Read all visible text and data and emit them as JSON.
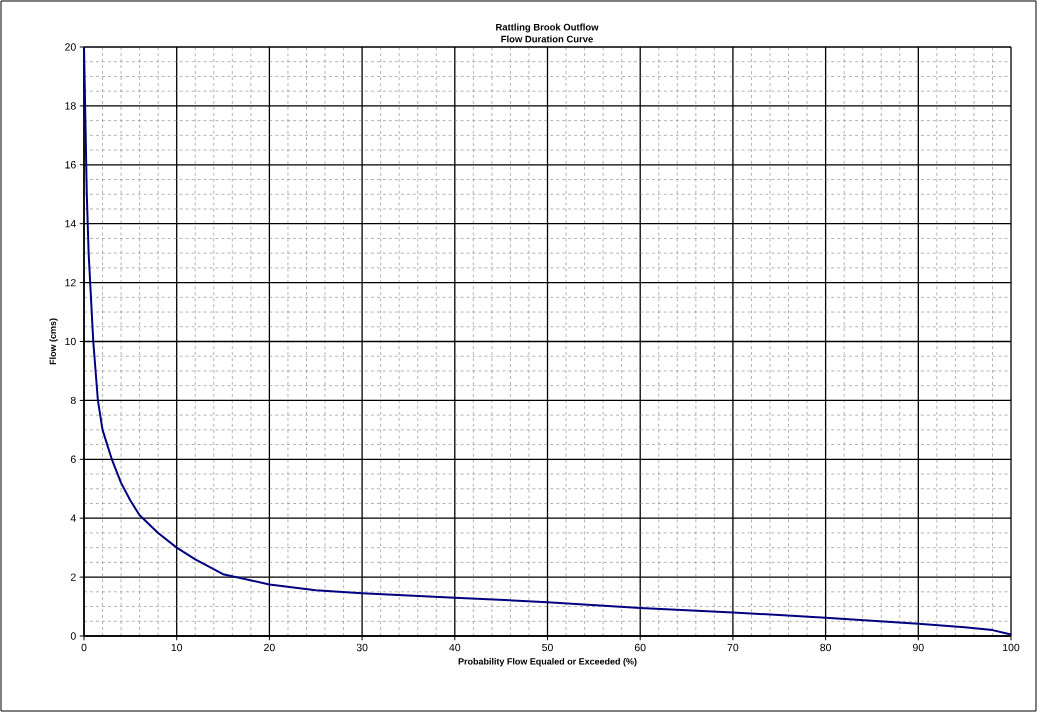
{
  "chart_data": {
    "type": "line",
    "title": "Rattling Brook Outflow",
    "subtitle": "Flow Duration Curve",
    "xlabel": "Probability Flow Equaled or Exceeded (%)",
    "ylabel": "Flow (cms)",
    "xlim": [
      0,
      100
    ],
    "ylim": [
      0,
      20
    ],
    "xticks": [
      0,
      10,
      20,
      30,
      40,
      50,
      60,
      70,
      80,
      90,
      100
    ],
    "yticks": [
      0,
      2,
      4,
      6,
      8,
      10,
      12,
      14,
      16,
      18,
      20
    ],
    "grid": true,
    "marker": "none",
    "line_style": "solid",
    "series": [
      {
        "color": "#000080",
        "x": [
          0,
          0.3,
          0.5,
          1,
          1.5,
          2,
          3,
          4,
          5,
          6,
          8,
          10,
          12,
          15,
          20,
          25,
          30,
          40,
          50,
          60,
          70,
          80,
          90,
          95,
          98,
          100
        ],
        "values": [
          20,
          15,
          13,
          10,
          8,
          7,
          6,
          5.2,
          4.6,
          4.1,
          3.5,
          3.0,
          2.6,
          2.1,
          1.75,
          1.55,
          1.45,
          1.3,
          1.15,
          0.95,
          0.8,
          0.62,
          0.42,
          0.3,
          0.2,
          0.05
        ]
      }
    ]
  }
}
